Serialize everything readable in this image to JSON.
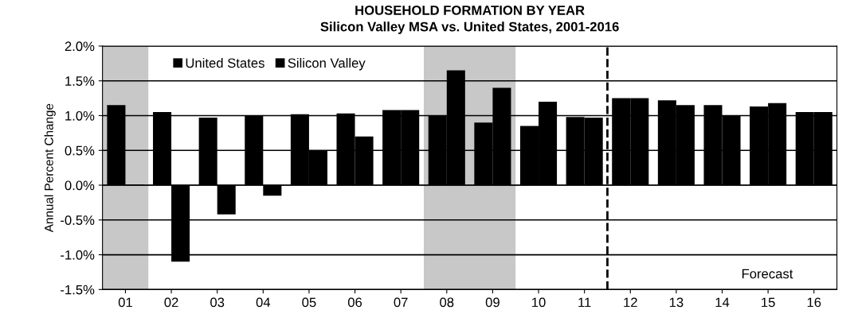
{
  "chart_data": {
    "type": "bar",
    "title": "HOUSEHOLD FORMATION BY YEAR",
    "subtitle": "Silicon Valley MSA vs. United States, 2001-2016",
    "ylabel": "Annual Percent Change",
    "categories": [
      "01",
      "02",
      "03",
      "04",
      "05",
      "06",
      "07",
      "08",
      "09",
      "10",
      "11",
      "12",
      "13",
      "14",
      "15",
      "16"
    ],
    "series": [
      {
        "name": "United States",
        "color": "#000000",
        "values": [
          1.15,
          1.05,
          0.97,
          1.0,
          1.02,
          1.03,
          1.08,
          1.0,
          0.9,
          0.85,
          0.98,
          1.25,
          1.22,
          1.15,
          1.13,
          1.05
        ]
      },
      {
        "name": "Silicon Valley",
        "color": "#000000",
        "values": [
          0.01,
          -1.1,
          -0.42,
          -0.15,
          0.5,
          0.7,
          1.08,
          1.65,
          1.4,
          1.2,
          0.97,
          1.25,
          1.15,
          1.0,
          1.18,
          1.05
        ]
      }
    ],
    "ylim": [
      -1.5,
      2.0
    ],
    "yticks": [
      {
        "value": -1.5,
        "label": "-1.5%"
      },
      {
        "value": -1.0,
        "label": "-1.0%"
      },
      {
        "value": -0.5,
        "label": "-0.5%"
      },
      {
        "value": 0.0,
        "label": "0.0%"
      },
      {
        "value": 0.5,
        "label": "0.5%"
      },
      {
        "value": 1.0,
        "label": "1.0%"
      },
      {
        "value": 1.5,
        "label": "1.5%"
      },
      {
        "value": 2.0,
        "label": "2.0%"
      }
    ],
    "bands": [
      {
        "axis": "x",
        "from": "01",
        "to": "01",
        "color": "#c8c8c8"
      },
      {
        "axis": "x",
        "from": "08",
        "to": "09",
        "color": "#c8c8c8"
      }
    ],
    "ref_lines": [
      {
        "axis": "x",
        "value": "12",
        "color": "#000000",
        "line_style": "dashed"
      }
    ],
    "annotations": [
      "Forecast"
    ],
    "grid": "y",
    "legend": "top left"
  }
}
